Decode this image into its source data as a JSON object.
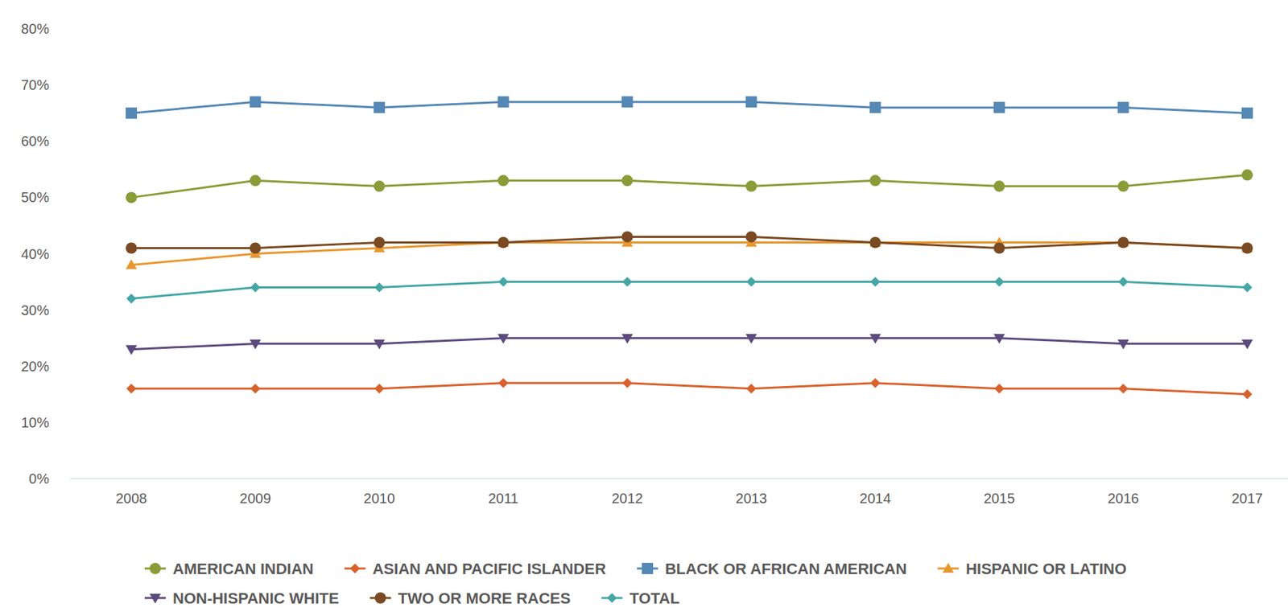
{
  "chart_data": {
    "type": "line",
    "categories": [
      "2008",
      "2009",
      "2010",
      "2011",
      "2012",
      "2013",
      "2014",
      "2015",
      "2016",
      "2017"
    ],
    "ylim": [
      0,
      80
    ],
    "yticks": [
      {
        "value": 0,
        "label": "0%"
      },
      {
        "value": 10,
        "label": "10%"
      },
      {
        "value": 20,
        "label": "20%"
      },
      {
        "value": 30,
        "label": "30%"
      },
      {
        "value": 40,
        "label": "40%"
      },
      {
        "value": 50,
        "label": "50%"
      },
      {
        "value": 60,
        "label": "60%"
      },
      {
        "value": 70,
        "label": "70%"
      },
      {
        "value": 80,
        "label": "80%"
      }
    ],
    "grid": false,
    "legend": "bottom",
    "series": [
      {
        "name": "AMERICAN INDIAN",
        "color": "#8a9c38",
        "marker": "circle",
        "values": [
          50,
          53,
          52,
          53,
          53,
          52,
          53,
          52,
          52,
          54
        ]
      },
      {
        "name": "ASIAN AND PACIFIC ISLANDER",
        "color": "#d9612c",
        "marker": "diamond",
        "values": [
          16,
          16,
          16,
          17,
          17,
          16,
          17,
          16,
          16,
          15
        ]
      },
      {
        "name": "BLACK OR AFRICAN AMERICAN",
        "color": "#5588b5",
        "marker": "square",
        "values": [
          65,
          67,
          66,
          67,
          67,
          67,
          66,
          66,
          66,
          65
        ]
      },
      {
        "name": "HISPANIC OR LATINO",
        "color": "#e9972f",
        "marker": "triangle",
        "values": [
          38,
          40,
          41,
          42,
          42,
          42,
          42,
          42,
          42,
          41
        ]
      },
      {
        "name": "NON-HISPANIC WHITE",
        "color": "#5c4a7d",
        "marker": "triangle-down",
        "values": [
          23,
          24,
          24,
          25,
          25,
          25,
          25,
          25,
          24,
          24
        ]
      },
      {
        "name": "TWO OR MORE RACES",
        "color": "#7a4a22",
        "marker": "circle",
        "values": [
          41,
          41,
          42,
          42,
          43,
          43,
          42,
          41,
          42,
          41
        ]
      },
      {
        "name": "TOTAL",
        "color": "#45a6a6",
        "marker": "diamond",
        "values": [
          32,
          34,
          34,
          35,
          35,
          35,
          35,
          35,
          35,
          34
        ]
      }
    ]
  }
}
